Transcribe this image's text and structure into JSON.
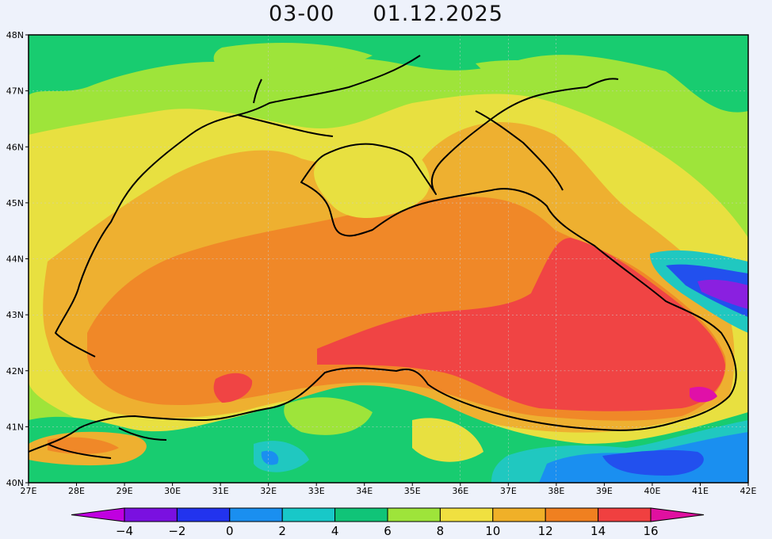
{
  "title": {
    "time": "03-00",
    "date": "01.12.2025"
  },
  "lat_labels": [
    "48N",
    "47N",
    "46N",
    "45N",
    "44N",
    "43N",
    "42N",
    "41N",
    "40N"
  ],
  "lon_labels": [
    "27E",
    "28E",
    "29E",
    "30E",
    "31E",
    "32E",
    "33E",
    "34E",
    "35E",
    "36E",
    "37E",
    "38E",
    "39E",
    "40E",
    "41E",
    "42E"
  ],
  "colorbar": {
    "labels": [
      "−4",
      "−2",
      "0",
      "2",
      "4",
      "6",
      "8",
      "10",
      "12",
      "14",
      "16"
    ],
    "colors": [
      "#c000e0",
      "#7a10e0",
      "#2233ee",
      "#1a8ff0",
      "#18c8c8",
      "#10c478",
      "#9ee43a",
      "#f0e040",
      "#f0b028",
      "#f08020",
      "#f04040",
      "#e010a0"
    ]
  },
  "palette": {
    "green": "#18cc70",
    "lightgreen": "#9ee43a",
    "yellow": "#e8e040",
    "gold": "#eeb030",
    "orange": "#f08828",
    "red": "#f04444",
    "cyan": "#20c8c0",
    "blue": "#2250ee",
    "purple": "#8a20e0",
    "magenta": "#e010a8"
  }
}
